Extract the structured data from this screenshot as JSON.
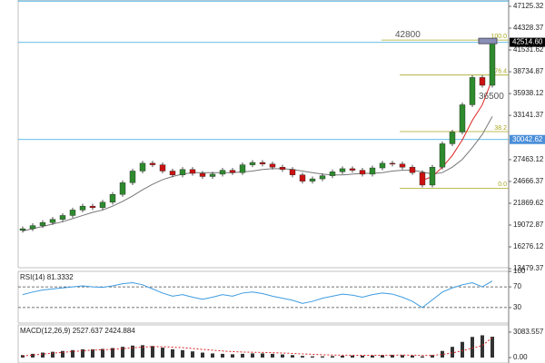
{
  "chart_data": [
    {
      "type": "candlestick",
      "ylim": [
        13600,
        47940
      ],
      "yticks": [
        47125.32,
        44328.37,
        41531.62,
        38734.87,
        35938.12,
        33141.37,
        27463.12,
        24666.37,
        21869.62,
        19072.87,
        16276.12,
        13479.37
      ],
      "up_color": "#2e8b2e",
      "down_color": "#cc1111",
      "open": [
        18400,
        18600,
        19000,
        19400,
        19800,
        20300,
        21000,
        21500,
        21300,
        22000,
        23000,
        24500,
        26000,
        27000,
        26800,
        26000,
        25500,
        26200,
        25700,
        25300,
        25600,
        26100,
        25800,
        26800,
        27100,
        26900,
        26500,
        26200,
        25500,
        24700,
        25000,
        25400,
        25900,
        26300,
        26100,
        25600,
        26400,
        27000,
        26900,
        26500,
        25800,
        24200,
        26500,
        29500,
        31000,
        34500,
        38000,
        37000
      ],
      "high": [
        18900,
        19300,
        19700,
        20100,
        20600,
        21300,
        21800,
        21800,
        22300,
        23300,
        24800,
        26300,
        27300,
        27300,
        27100,
        26300,
        26500,
        26500,
        26000,
        25900,
        26400,
        26400,
        27100,
        27400,
        27400,
        27200,
        26800,
        26500,
        25800,
        25300,
        25700,
        26200,
        26600,
        26600,
        26400,
        26700,
        27300,
        27300,
        27200,
        26800,
        26100,
        26800,
        29800,
        31300,
        34800,
        38300,
        38300,
        42800
      ],
      "low": [
        18100,
        18300,
        18700,
        19100,
        19500,
        20000,
        20700,
        21000,
        21000,
        21700,
        22700,
        24200,
        25700,
        26500,
        25700,
        25200,
        25200,
        25400,
        25000,
        25000,
        25300,
        25500,
        25500,
        26500,
        26600,
        26200,
        25900,
        25200,
        24400,
        24400,
        24700,
        25100,
        25600,
        25800,
        25300,
        25300,
        26100,
        26600,
        26200,
        25500,
        23900,
        23900,
        26200,
        29200,
        30700,
        34200,
        36700,
        36700
      ],
      "close": [
        18600,
        19000,
        19400,
        19800,
        20300,
        21000,
        21500,
        21300,
        22000,
        23000,
        24500,
        26000,
        27000,
        26800,
        26000,
        25500,
        26200,
        25700,
        25300,
        25600,
        26100,
        25800,
        26800,
        27100,
        26900,
        26500,
        26200,
        25500,
        24700,
        25000,
        25400,
        25900,
        26300,
        26100,
        25600,
        26400,
        27000,
        26900,
        26500,
        25800,
        24200,
        26500,
        29500,
        31000,
        34500,
        38000,
        37000,
        42500
      ],
      "series": [
        {
          "color": "#777777",
          "values": [
            18300,
            18600,
            18900,
            19200,
            19500,
            19900,
            20300,
            20700,
            21000,
            21500,
            22100,
            22800,
            23600,
            24300,
            24900,
            25300,
            25600,
            25800,
            25800,
            25800,
            25800,
            25800,
            25900,
            26000,
            26200,
            26300,
            26300,
            26200,
            26000,
            25800,
            25600,
            25500,
            25500,
            25600,
            25700,
            25700,
            25800,
            26000,
            26100,
            26100,
            25900,
            25600,
            25800,
            26500,
            27500,
            29000,
            30700,
            33000
          ]
        },
        {
          "color": "#dd2222",
          "values": [
            null,
            null,
            null,
            null,
            null,
            null,
            null,
            null,
            null,
            null,
            null,
            null,
            null,
            null,
            null,
            null,
            null,
            null,
            null,
            null,
            null,
            null,
            null,
            null,
            null,
            null,
            null,
            null,
            null,
            null,
            null,
            null,
            null,
            null,
            null,
            null,
            null,
            null,
            null,
            null,
            24800,
            25300,
            26500,
            28000,
            30000,
            32500,
            34500,
            37800
          ]
        }
      ],
      "hlines": [
        {
          "value": 47800,
          "color": "#33a8e0"
        },
        {
          "value": 42500,
          "color": "#33a8e0"
        },
        {
          "value": 30042.62,
          "color": "#33a8e0"
        }
      ],
      "fibo": {
        "color": "#a8a820",
        "levels": [
          {
            "value": 42800,
            "label": "100.0"
          },
          {
            "value": 38316,
            "label": "76.4"
          },
          {
            "value": 31058,
            "label": "38.2"
          },
          {
            "value": 23800,
            "label": "0.0"
          }
        ]
      },
      "annotations": [
        {
          "value": 42800,
          "label": "42800"
        },
        {
          "value": 36500,
          "label": "36500"
        }
      ],
      "price_labels": [
        {
          "value": 42514.6,
          "label": "42514.60",
          "color": "#000000"
        },
        {
          "value": 30042.62,
          "label": "30042.62",
          "color": "#4a8fd9"
        }
      ]
    },
    {
      "type": "line",
      "title": "RSI(14) 81.3332",
      "ylim": [
        0,
        100
      ],
      "yticks": [
        100,
        70,
        30
      ],
      "levels": [
        70,
        30
      ],
      "series": [
        {
          "color": "#3d9be0",
          "values": [
            55,
            60,
            64,
            66,
            68,
            70,
            72,
            70,
            69,
            72,
            76,
            78,
            74,
            66,
            58,
            52,
            55,
            50,
            46,
            50,
            55,
            52,
            58,
            60,
            57,
            52,
            48,
            44,
            38,
            42,
            48,
            52,
            56,
            54,
            50,
            55,
            58,
            56,
            50,
            42,
            30,
            45,
            60,
            68,
            74,
            78,
            70,
            81.3332
          ]
        }
      ]
    },
    {
      "type": "bar",
      "title": "MACD(12,26,9) 2527.637 2424.884",
      "ylim": [
        -660,
        3960
      ],
      "yticks": [
        3083.557,
        {
          "value": 0,
          "label": "0.00"
        }
      ],
      "color": "#333333",
      "values": [
        300,
        450,
        600,
        700,
        800,
        900,
        1000,
        1000,
        1050,
        1150,
        1300,
        1450,
        1500,
        1400,
        1200,
        1000,
        900,
        750,
        600,
        500,
        450,
        400,
        450,
        500,
        500,
        450,
        380,
        300,
        200,
        150,
        150,
        180,
        220,
        250,
        230,
        250,
        300,
        320,
        300,
        250,
        150,
        300,
        800,
        1300,
        1900,
        2500,
        2700,
        2527.637
      ],
      "signal": {
        "color": "#dd2222",
        "values": [
          200,
          300,
          420,
          530,
          630,
          730,
          820,
          900,
          950,
          1000,
          1080,
          1180,
          1270,
          1320,
          1320,
          1260,
          1190,
          1100,
          990,
          890,
          800,
          720,
          670,
          640,
          620,
          590,
          550,
          500,
          440,
          390,
          340,
          310,
          290,
          280,
          270,
          270,
          280,
          290,
          300,
          290,
          260,
          270,
          380,
          560,
          820,
          1150,
          1450,
          2424.884
        ]
      }
    }
  ]
}
